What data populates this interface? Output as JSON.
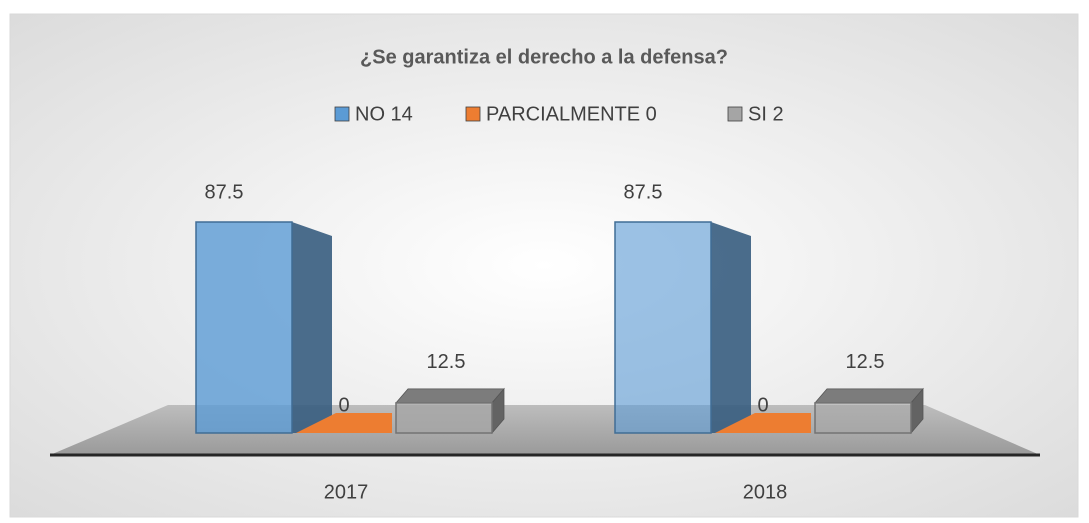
{
  "chart_data": {
    "type": "bar3d",
    "title": "¿Se garantiza el derecho a la defensa?",
    "categories": [
      "2017",
      "2018"
    ],
    "series": [
      {
        "name": "NO 14",
        "color": "#5b9bd5",
        "values": [
          87.5,
          87.5
        ]
      },
      {
        "name": "PARCIALMENTE 0",
        "color": "#ed7d31",
        "values": [
          0,
          0
        ]
      },
      {
        "name": "SI 2",
        "color": "#a5a5a5",
        "values": [
          12.5,
          12.5
        ]
      }
    ],
    "legend": "top"
  }
}
